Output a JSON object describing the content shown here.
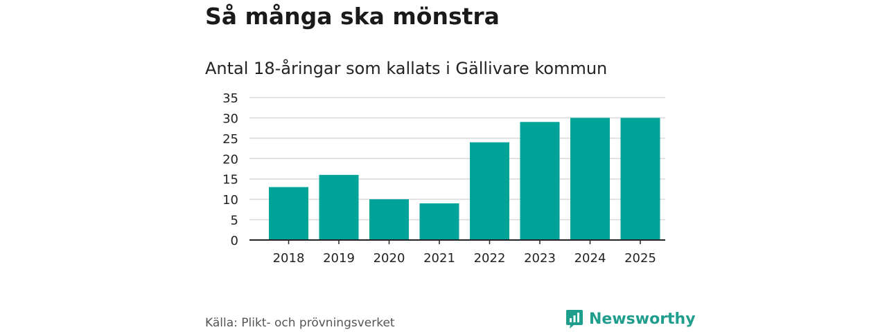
{
  "title": "Så många ska mönstra",
  "subtitle": "Antal 18-åringar som kallats i Gällivare kommun",
  "source": "Källa: Plikt- och prövningsverket",
  "brand": {
    "name": "Newsworthy",
    "icon": "bar-chart-speech-icon",
    "color": "#1f9e8d"
  },
  "chart_data": {
    "type": "bar",
    "categories": [
      "2018",
      "2019",
      "2020",
      "2021",
      "2022",
      "2023",
      "2024",
      "2025"
    ],
    "values": [
      13,
      16,
      10,
      9,
      24,
      29,
      30,
      30
    ],
    "ylim": [
      0,
      35
    ],
    "yticks": [
      0,
      5,
      10,
      15,
      20,
      25,
      30,
      35
    ],
    "grid": true,
    "bar_color": "#00a398",
    "grid_color": "#d9d9d9",
    "axis_color": "#222222"
  }
}
